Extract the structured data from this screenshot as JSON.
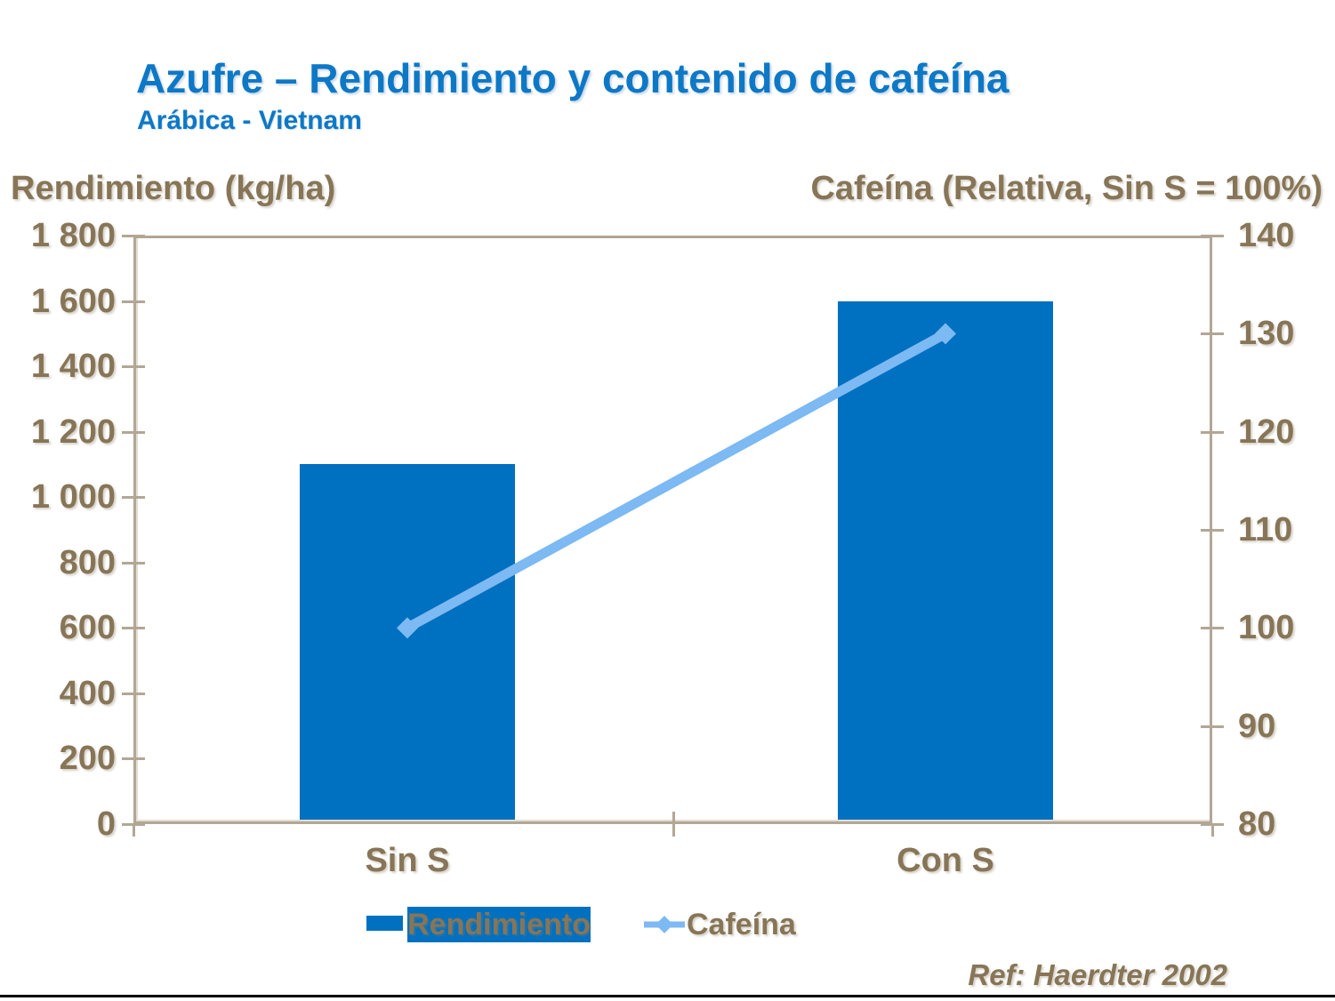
{
  "header": {
    "title": "Azufre – Rendimiento y contenido de cafeína",
    "subtitle": "Arábica - Vietnam"
  },
  "legend": {
    "bar_label": "Rendimiento",
    "line_label": "Cafeína"
  },
  "footer": {
    "ref": "Ref: Haerdter 2002"
  },
  "colors": {
    "title_blue": "#0d78c6",
    "bar_blue": "#0070c0",
    "line_blue": "#7db9f2",
    "text_brown": "#877557",
    "axis_tan": "#b2a795",
    "bottom_rule": "#000000"
  },
  "chart_data": {
    "type": "bar",
    "subtype": "bar-line-combo-dual-axis",
    "categories": [
      "Sin S",
      "Con S"
    ],
    "series": [
      {
        "name": "Rendimiento",
        "type": "bar",
        "axis": "left",
        "values": [
          1100,
          1600
        ],
        "color": "#0070c0"
      },
      {
        "name": "Cafeína",
        "type": "line",
        "axis": "right",
        "values": [
          100,
          130
        ],
        "color": "#7db9f2",
        "marker": "diamond"
      }
    ],
    "left_axis": {
      "title": "Rendimiento (kg/ha)",
      "min": 0,
      "max": 1800,
      "step": 200,
      "tick_labels": [
        "1 800",
        "1 600",
        "1 400",
        "1 200",
        "1 000",
        "800",
        "600",
        "400",
        "200",
        "0"
      ]
    },
    "right_axis": {
      "title": "Cafeína (Relativa, Sin S = 100%)",
      "min": 80,
      "max": 140,
      "step": 10,
      "tick_labels": [
        "140",
        "130",
        "120",
        "110",
        "100",
        "90",
        "80"
      ]
    },
    "grid": false,
    "legend_position": "bottom"
  }
}
